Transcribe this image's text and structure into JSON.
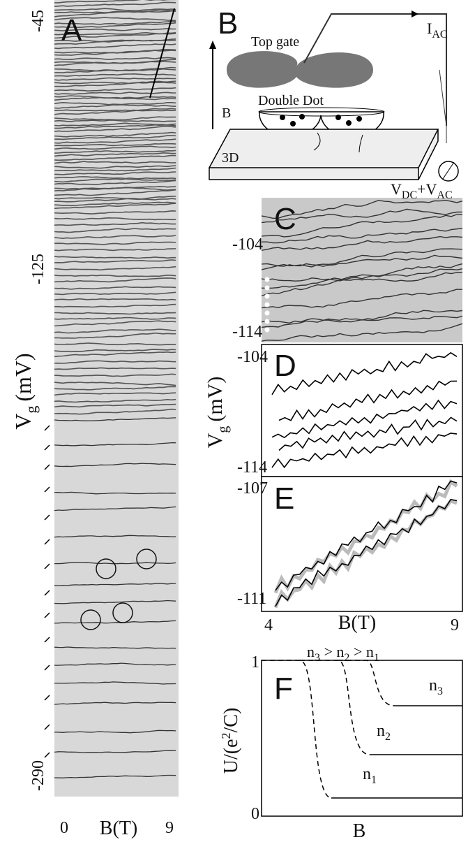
{
  "panel_a": {
    "label": "A",
    "y_axis": {
      "symbol": "V",
      "subscript": "g",
      "unit": "(mV)"
    },
    "y_ticks": [
      "-45",
      "-125",
      "-290"
    ],
    "x_ticks": [
      "0",
      "9"
    ],
    "x_label": "B(T)"
  },
  "panel_b": {
    "label": "B",
    "top_gate": "Top gate",
    "double_dot": "Double Dot",
    "b_field": "B",
    "substrate": "3D",
    "current": {
      "symbol": "I",
      "subscript": "AC"
    },
    "voltage": {
      "symbol": "V",
      "subscript": "DC",
      "joiner": "+V",
      "subscript2": "AC"
    }
  },
  "panel_c": {
    "label": "C",
    "y_ticks": [
      "-104",
      "-114"
    ]
  },
  "panel_d": {
    "label": "D",
    "y_axis": {
      "symbol": "V",
      "subscript": "g",
      "unit": "(mV)"
    },
    "y_ticks": [
      "-104",
      "-114"
    ]
  },
  "panel_e": {
    "label": "E",
    "y_ticks": [
      "-107",
      "-111"
    ],
    "x_ticks": [
      "4",
      "9"
    ],
    "x_label": "B(T)"
  },
  "panel_f": {
    "label": "F",
    "title": [
      {
        "n": "n",
        "s": "3"
      },
      {
        "n": " > n",
        "s": "2"
      },
      {
        "n": " > n",
        "s": "1"
      }
    ],
    "y_axis": {
      "pre": "U/(e",
      "sup": "2",
      "post": "/C)"
    },
    "y_ticks": [
      "1",
      "0"
    ],
    "x_label": "B",
    "curves": [
      {
        "n": "n",
        "s": "1"
      },
      {
        "n": "n",
        "s": "2"
      },
      {
        "n": "n",
        "s": "3"
      }
    ]
  }
}
